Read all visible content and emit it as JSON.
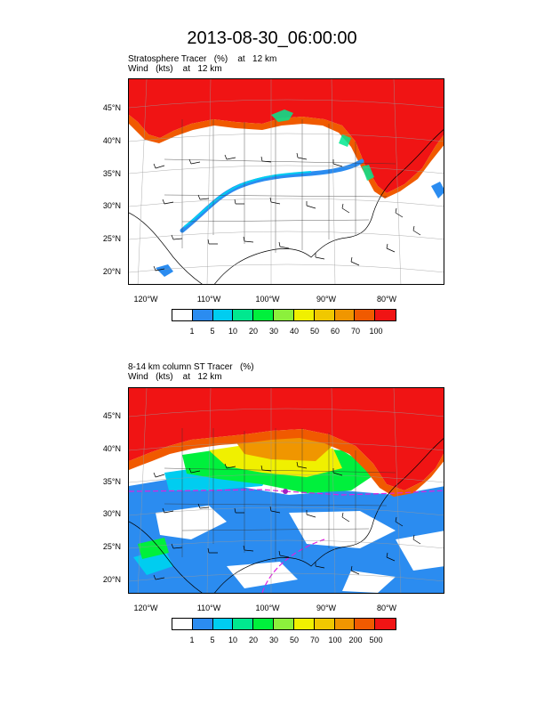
{
  "title": "2013-08-30_06:00:00",
  "panels": [
    {
      "label_line1": "Stratosphere Tracer   (%)    at   12 km",
      "label_line2": "Wind   (kts)    at   12 km",
      "lat_ticks": [
        "45°N",
        "40°N",
        "35°N",
        "30°N",
        "25°N",
        "20°N"
      ],
      "lon_ticks": [
        "120°W",
        "110°W",
        "100°W",
        "90°W",
        "80°W"
      ],
      "colorbar_labels": [
        "1",
        "5",
        "10",
        "20",
        "30",
        "40",
        "50",
        "60",
        "70",
        "100"
      ],
      "colors": [
        "#ffffff",
        "#2b8cf0",
        "#00cdf0",
        "#00e88f",
        "#00f03c",
        "#8cf03c",
        "#f0f000",
        "#f0c800",
        "#f09600",
        "#f05a00",
        "#f01414"
      ]
    },
    {
      "label_line1": "8-14 km column ST Tracer   (%)",
      "label_line2": "Wind   (kts)    at   12 km",
      "lat_ticks": [
        "45°N",
        "40°N",
        "35°N",
        "30°N",
        "25°N",
        "20°N"
      ],
      "lon_ticks": [
        "120°W",
        "110°W",
        "100°W",
        "90°W",
        "80°W"
      ],
      "colorbar_labels": [
        "1",
        "5",
        "10",
        "20",
        "30",
        "50",
        "70",
        "100",
        "200",
        "500"
      ],
      "colors": [
        "#ffffff",
        "#2b8cf0",
        "#00cdf0",
        "#00e88f",
        "#00f03c",
        "#8cf03c",
        "#f0f000",
        "#f0c800",
        "#f09600",
        "#f05a00",
        "#f01414"
      ]
    }
  ]
}
